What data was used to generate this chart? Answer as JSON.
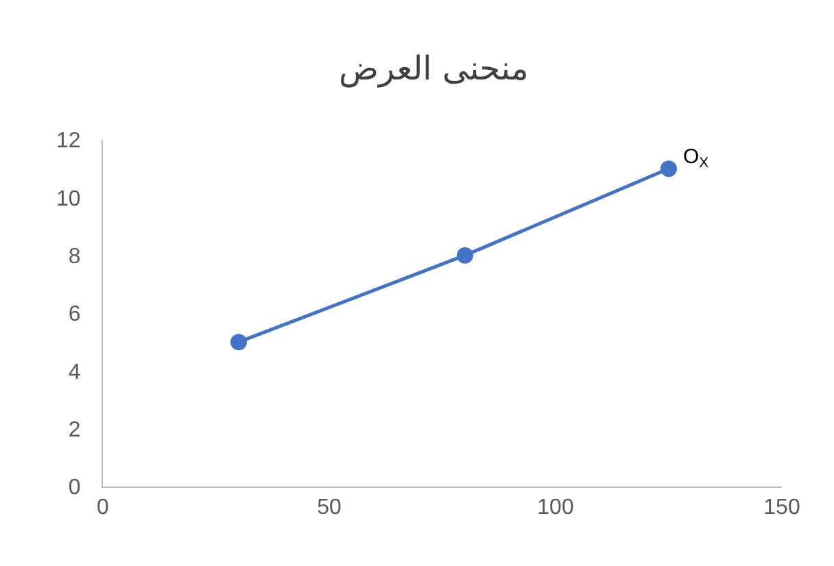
{
  "chart_data": {
    "type": "line",
    "title": "منحنى العرض",
    "x": [
      30,
      80,
      125
    ],
    "series": [
      {
        "color": "#4472c4",
        "values": [
          5,
          8,
          11
        ]
      }
    ],
    "xlim": [
      0,
      150
    ],
    "xticks": [
      0,
      50,
      100,
      150
    ],
    "ylim": [
      0,
      12
    ],
    "yticks": [
      0,
      2,
      4,
      6,
      8,
      10,
      12
    ],
    "marker": "circle",
    "line_style": "solid",
    "annotations": [
      {
        "text": "O$_{X}$",
        "x": 125,
        "y": 11
      }
    ]
  }
}
